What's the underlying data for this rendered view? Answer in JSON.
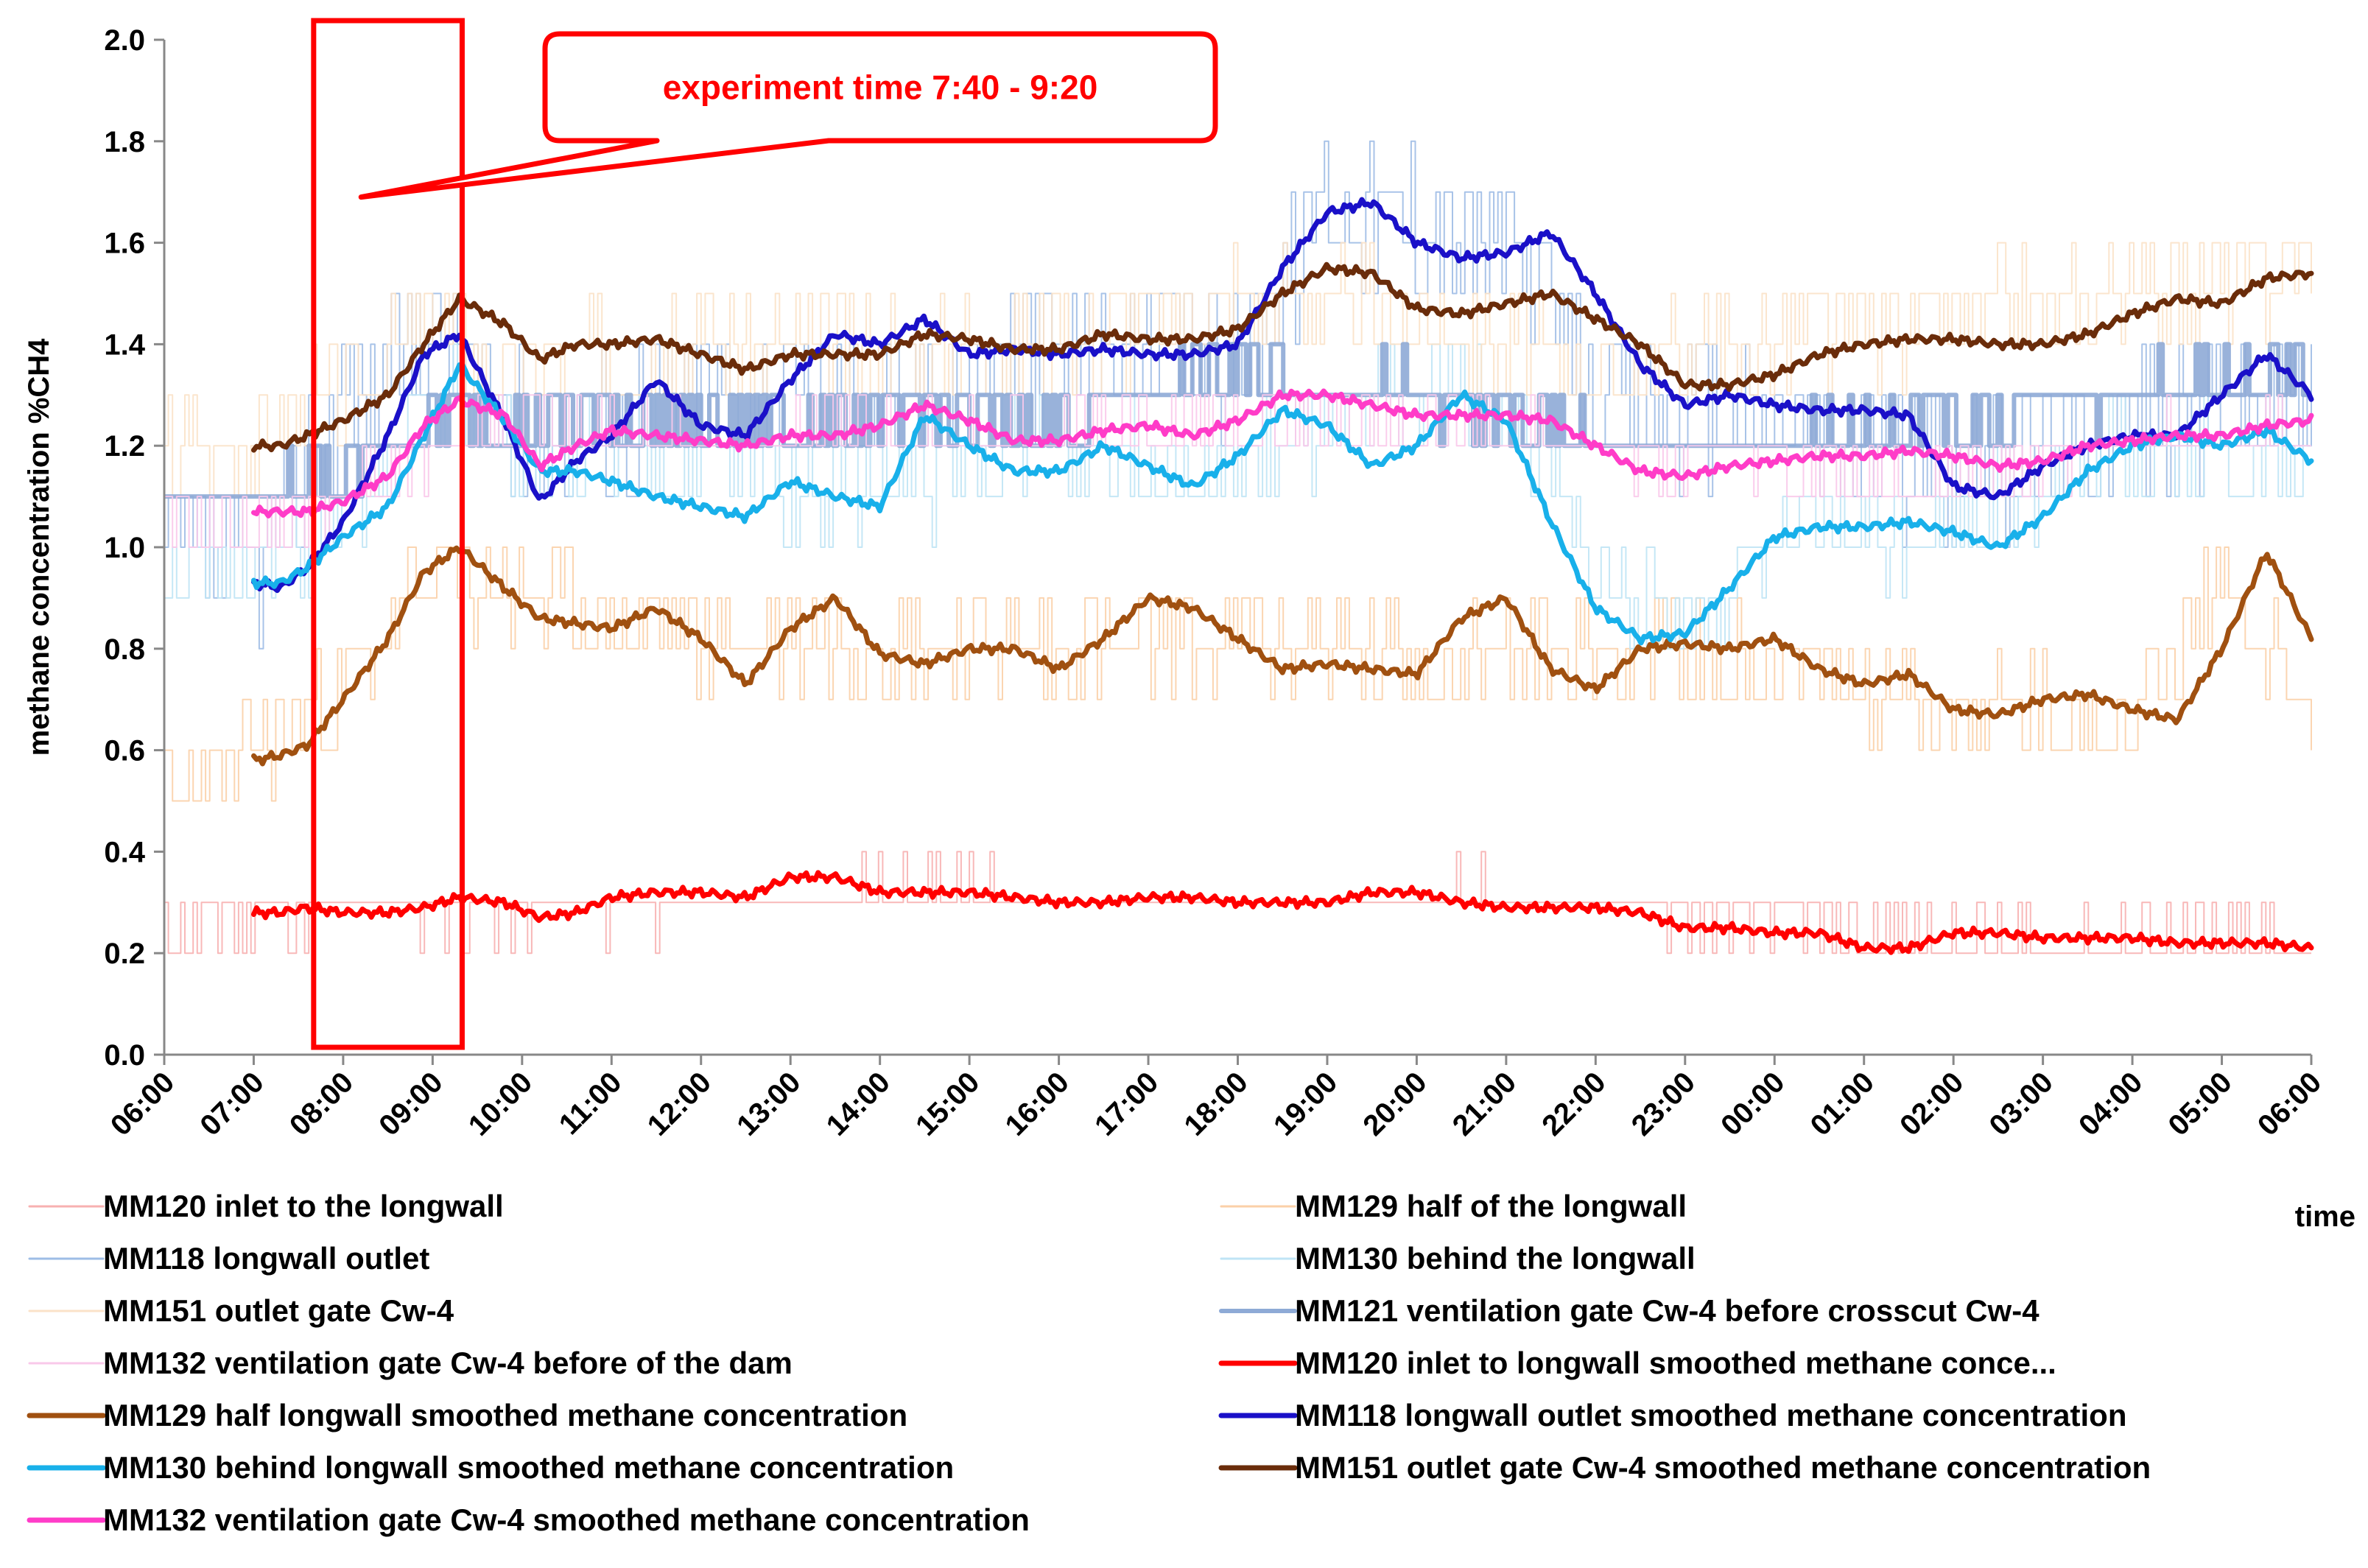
{
  "chart_data": {
    "type": "line",
    "title": "",
    "ylabel": "methane concentration %CH4",
    "xlabel": "time",
    "ylim": [
      0,
      2.0
    ],
    "yticks": [
      "0.0",
      "0.2",
      "0.4",
      "0.6",
      "0.8",
      "1.0",
      "1.2",
      "1.4",
      "1.6",
      "1.8",
      "2.0"
    ],
    "xlim": [
      0,
      24
    ],
    "xticks": [
      "06:00",
      "07:00",
      "08:00",
      "09:00",
      "10:00",
      "11:00",
      "12:00",
      "13:00",
      "14:00",
      "15:00",
      "16:00",
      "17:00",
      "18:00",
      "19:00",
      "20:00",
      "21:00",
      "22:00",
      "23:00",
      "00:00",
      "01:00",
      "02:00",
      "03:00",
      "04:00",
      "05:00",
      "06:00"
    ],
    "annotation": {
      "text": "experiment time  7:40 - 9:20",
      "start_hours": 1.67,
      "end_hours": 3.33,
      "pointer_hours": 2.2,
      "pointer_value": 1.69
    },
    "series": [
      {
        "name": "MM120 inlet to the longwall",
        "color": "#f7b0b0",
        "width": 2,
        "raw": true,
        "base": 0.26,
        "amp": 0.05,
        "step": 0.1,
        "seed": 11,
        "x": [
          0,
          1,
          2,
          4,
          6,
          8,
          10,
          12,
          14,
          16,
          18,
          20,
          22,
          24
        ],
        "values": [
          0.25,
          0.28,
          0.28,
          0.29,
          0.3,
          0.32,
          0.3,
          0.3,
          0.31,
          0.3,
          0.26,
          0.22,
          0.23,
          0.22
        ]
      },
      {
        "name": "MM129 half of the longwall",
        "color": "#fbd0a8",
        "width": 2,
        "raw": true,
        "base": 0.8,
        "amp": 0.1,
        "step": 0.1,
        "seed": 23,
        "x": [
          0,
          1,
          2,
          3,
          4,
          6,
          8,
          10,
          12,
          14,
          16,
          18,
          20,
          22,
          23,
          24
        ],
        "values": [
          0.5,
          0.6,
          0.72,
          0.95,
          0.9,
          0.82,
          0.82,
          0.8,
          0.82,
          0.78,
          0.8,
          0.76,
          0.7,
          0.65,
          0.95,
          0.7
        ]
      },
      {
        "name": "MM118 longwall outlet",
        "color": "#9ebde6",
        "width": 2,
        "raw": true,
        "base": 1.3,
        "amp": 0.15,
        "step": 0.1,
        "seed": 37,
        "x": [
          0,
          1,
          2,
          3,
          4,
          6,
          8,
          10,
          12,
          13,
          14,
          15,
          16,
          18,
          20,
          22,
          24
        ],
        "values": [
          1.0,
          0.95,
          1.3,
          1.45,
          1.2,
          1.3,
          1.3,
          1.4,
          1.38,
          1.7,
          1.65,
          1.6,
          1.3,
          1.25,
          1.15,
          1.25,
          1.3
        ]
      },
      {
        "name": "MM130 behind the longwall",
        "color": "#bfe4f5",
        "width": 2,
        "raw": true,
        "base": 1.1,
        "amp": 0.1,
        "step": 0.1,
        "seed": 51,
        "x": [
          0,
          1,
          2,
          3,
          4,
          6,
          8,
          10,
          12,
          14,
          15,
          16,
          17,
          18,
          20,
          22,
          24
        ],
        "values": [
          0.95,
          0.95,
          1.05,
          1.3,
          1.2,
          1.15,
          1.12,
          1.2,
          1.15,
          1.3,
          1.28,
          0.95,
          0.85,
          1.0,
          1.05,
          1.2,
          1.15
        ]
      },
      {
        "name": "MM151 outlet gate Cw-4",
        "color": "#fbe2c8",
        "width": 2,
        "raw": true,
        "base": 1.35,
        "amp": 0.1,
        "step": 0.1,
        "seed": 67,
        "x": [
          0,
          1,
          2,
          3,
          4,
          6,
          8,
          10,
          12,
          14,
          16,
          18,
          20,
          22,
          24
        ],
        "values": [
          1.2,
          1.2,
          1.3,
          1.45,
          1.35,
          1.4,
          1.4,
          1.4,
          1.5,
          1.45,
          1.35,
          1.4,
          1.45,
          1.5,
          1.55
        ]
      },
      {
        "name": "MM121 ventilation gate  Cw-4 before crosscut Cw-4",
        "color": "#8eaad6",
        "width": 6,
        "raw": true,
        "base": 1.25,
        "amp": 0.05,
        "step": 0.1,
        "seed": 79,
        "x": [
          0,
          1,
          2,
          3,
          4,
          6,
          8,
          10,
          12,
          14,
          16,
          18,
          20,
          22,
          24
        ],
        "values": [
          1.1,
          1.1,
          1.15,
          1.25,
          1.25,
          1.25,
          1.25,
          1.25,
          1.35,
          1.3,
          1.2,
          1.2,
          1.25,
          1.3,
          1.35
        ]
      },
      {
        "name": "MM132 ventilation gate Cw-4 before of the dam",
        "color": "#f9c8ea",
        "width": 2,
        "raw": true,
        "base": 1.2,
        "amp": 0.05,
        "step": 0.1,
        "seed": 91,
        "x": [
          0,
          1,
          2,
          4,
          6,
          8,
          10,
          12,
          14,
          16,
          18,
          20,
          22,
          24
        ],
        "values": [
          1.05,
          1.05,
          1.1,
          1.25,
          1.2,
          1.22,
          1.22,
          1.25,
          1.25,
          1.2,
          1.15,
          1.15,
          1.2,
          1.22
        ]
      },
      {
        "name": "MM120 inlet to longwall smoothed methane conce...",
        "color": "#ff0000",
        "width": 7,
        "raw": false,
        "x": [
          1.0,
          1.3,
          1.6,
          2.0,
          2.5,
          2.9,
          3.3,
          3.8,
          4.2,
          4.6,
          5.0,
          5.5,
          6.0,
          6.5,
          7.0,
          7.5,
          8.0,
          8.5,
          9.0,
          9.5,
          10.0,
          10.5,
          11.0,
          11.5,
          12.0,
          12.5,
          13.0,
          13.5,
          14.0,
          14.5,
          15.0,
          15.5,
          16.0,
          16.5,
          17.0,
          17.5,
          18.0,
          18.5,
          19.0,
          19.5,
          20.0,
          20.5,
          21.0,
          21.5,
          22.0,
          22.5,
          23.0,
          23.5,
          24.0
        ],
        "values": [
          0.28,
          0.28,
          0.29,
          0.28,
          0.28,
          0.29,
          0.31,
          0.3,
          0.27,
          0.28,
          0.31,
          0.32,
          0.32,
          0.31,
          0.35,
          0.35,
          0.32,
          0.32,
          0.32,
          0.31,
          0.3,
          0.3,
          0.31,
          0.31,
          0.3,
          0.3,
          0.3,
          0.32,
          0.32,
          0.3,
          0.29,
          0.29,
          0.29,
          0.28,
          0.25,
          0.25,
          0.24,
          0.24,
          0.21,
          0.21,
          0.24,
          0.24,
          0.23,
          0.23,
          0.23,
          0.22,
          0.22,
          0.22,
          0.21
        ]
      },
      {
        "name": "MM129 half longwall smoothed methane concentration",
        "color": "#a05010",
        "width": 7,
        "raw": false,
        "x": [
          1.0,
          1.3,
          1.6,
          2.0,
          2.5,
          2.9,
          3.3,
          3.8,
          4.2,
          4.6,
          5.0,
          5.5,
          6.0,
          6.5,
          7.0,
          7.5,
          8.0,
          8.5,
          9.0,
          9.5,
          10.0,
          10.5,
          11.0,
          11.5,
          12.0,
          12.5,
          13.0,
          13.5,
          14.0,
          14.5,
          15.0,
          15.5,
          16.0,
          16.5,
          17.0,
          17.5,
          18.0,
          18.5,
          19.0,
          19.5,
          20.0,
          20.5,
          21.0,
          21.5,
          22.0,
          22.5,
          23.0,
          23.5,
          24.0
        ],
        "values": [
          0.58,
          0.59,
          0.61,
          0.7,
          0.82,
          0.95,
          1.0,
          0.92,
          0.86,
          0.85,
          0.84,
          0.88,
          0.82,
          0.73,
          0.84,
          0.9,
          0.79,
          0.77,
          0.8,
          0.8,
          0.76,
          0.82,
          0.9,
          0.88,
          0.82,
          0.76,
          0.77,
          0.76,
          0.75,
          0.86,
          0.9,
          0.76,
          0.72,
          0.8,
          0.81,
          0.8,
          0.82,
          0.76,
          0.73,
          0.75,
          0.68,
          0.67,
          0.7,
          0.71,
          0.68,
          0.66,
          0.8,
          0.99,
          0.82
        ]
      },
      {
        "name": "MM118 longwall outlet smoothed methane concentration",
        "color": "#1a10c8",
        "width": 7,
        "raw": false,
        "x": [
          1.0,
          1.3,
          1.6,
          2.0,
          2.5,
          2.9,
          3.3,
          3.8,
          4.2,
          4.6,
          5.0,
          5.5,
          6.0,
          6.5,
          7.0,
          7.5,
          8.0,
          8.5,
          9.0,
          9.5,
          10.0,
          10.5,
          11.0,
          11.5,
          12.0,
          12.5,
          13.0,
          13.5,
          14.0,
          14.5,
          15.0,
          15.5,
          16.0,
          16.5,
          17.0,
          17.5,
          18.0,
          18.5,
          19.0,
          19.5,
          20.0,
          20.5,
          21.0,
          21.5,
          22.0,
          22.5,
          23.0,
          23.5,
          24.0
        ],
        "values": [
          0.93,
          0.92,
          0.96,
          1.05,
          1.22,
          1.38,
          1.42,
          1.25,
          1.09,
          1.17,
          1.22,
          1.33,
          1.24,
          1.22,
          1.33,
          1.42,
          1.4,
          1.45,
          1.38,
          1.39,
          1.38,
          1.39,
          1.38,
          1.38,
          1.4,
          1.55,
          1.66,
          1.68,
          1.6,
          1.57,
          1.58,
          1.62,
          1.5,
          1.36,
          1.28,
          1.3,
          1.28,
          1.27,
          1.27,
          1.26,
          1.12,
          1.1,
          1.16,
          1.2,
          1.22,
          1.22,
          1.3,
          1.38,
          1.3
        ]
      },
      {
        "name": "MM130 behind longwall smoothed methane concentration",
        "color": "#18b0ea",
        "width": 7,
        "raw": false,
        "x": [
          1.0,
          1.3,
          1.6,
          2.0,
          2.5,
          2.9,
          3.3,
          3.8,
          4.2,
          4.6,
          5.0,
          5.5,
          6.0,
          6.5,
          7.0,
          7.5,
          8.0,
          8.5,
          9.0,
          9.5,
          10.0,
          10.5,
          11.0,
          11.5,
          12.0,
          12.5,
          13.0,
          13.5,
          14.0,
          14.5,
          15.0,
          15.5,
          16.0,
          16.5,
          17.0,
          17.5,
          18.0,
          18.5,
          19.0,
          19.5,
          20.0,
          20.5,
          21.0,
          21.5,
          22.0,
          22.5,
          23.0,
          23.5,
          24.0
        ],
        "values": [
          0.93,
          0.93,
          0.96,
          1.02,
          1.08,
          1.22,
          1.36,
          1.25,
          1.15,
          1.15,
          1.13,
          1.1,
          1.08,
          1.06,
          1.13,
          1.1,
          1.08,
          1.26,
          1.2,
          1.15,
          1.15,
          1.2,
          1.16,
          1.12,
          1.18,
          1.27,
          1.24,
          1.16,
          1.2,
          1.3,
          1.25,
          1.05,
          0.88,
          0.82,
          0.83,
          0.92,
          1.02,
          1.04,
          1.04,
          1.05,
          1.03,
          1.0,
          1.06,
          1.15,
          1.2,
          1.22,
          1.2,
          1.23,
          1.17
        ]
      },
      {
        "name": "MM151 outlet gate Cw-4 smoothed methane concentration",
        "color": "#6a2c0a",
        "width": 7,
        "raw": false,
        "x": [
          1.0,
          1.3,
          1.6,
          2.0,
          2.5,
          2.9,
          3.3,
          3.8,
          4.2,
          4.6,
          5.0,
          5.5,
          6.0,
          6.5,
          7.0,
          7.5,
          8.0,
          8.5,
          9.0,
          9.5,
          10.0,
          10.5,
          11.0,
          11.5,
          12.0,
          12.5,
          13.0,
          13.5,
          14.0,
          14.5,
          15.0,
          15.5,
          16.0,
          16.5,
          17.0,
          17.5,
          18.0,
          18.5,
          19.0,
          19.5,
          20.0,
          20.5,
          21.0,
          21.5,
          22.0,
          22.5,
          23.0,
          23.5,
          24.0
        ],
        "values": [
          1.2,
          1.2,
          1.22,
          1.25,
          1.3,
          1.4,
          1.49,
          1.44,
          1.37,
          1.4,
          1.4,
          1.41,
          1.38,
          1.35,
          1.38,
          1.38,
          1.38,
          1.42,
          1.41,
          1.39,
          1.39,
          1.42,
          1.41,
          1.41,
          1.43,
          1.5,
          1.55,
          1.54,
          1.47,
          1.46,
          1.48,
          1.5,
          1.45,
          1.4,
          1.32,
          1.32,
          1.34,
          1.38,
          1.4,
          1.41,
          1.41,
          1.4,
          1.4,
          1.42,
          1.46,
          1.49,
          1.48,
          1.53,
          1.54
        ]
      },
      {
        "name": "MM132 ventilation gate Cw-4 smoothed methane concentration",
        "color": "#ff3cc8",
        "width": 7,
        "raw": false,
        "x": [
          1.0,
          1.3,
          1.6,
          2.0,
          2.5,
          2.9,
          3.3,
          3.8,
          4.2,
          4.6,
          5.0,
          5.5,
          6.0,
          6.5,
          7.0,
          7.5,
          8.0,
          8.5,
          9.0,
          9.5,
          10.0,
          10.5,
          11.0,
          11.5,
          12.0,
          12.5,
          13.0,
          13.5,
          14.0,
          14.5,
          15.0,
          15.5,
          16.0,
          16.5,
          17.0,
          17.5,
          18.0,
          18.5,
          19.0,
          19.5,
          20.0,
          20.5,
          21.0,
          21.5,
          22.0,
          22.5,
          23.0,
          23.5,
          24.0
        ],
        "values": [
          1.07,
          1.07,
          1.07,
          1.09,
          1.14,
          1.24,
          1.29,
          1.26,
          1.16,
          1.2,
          1.23,
          1.22,
          1.21,
          1.2,
          1.22,
          1.22,
          1.24,
          1.28,
          1.25,
          1.21,
          1.21,
          1.23,
          1.24,
          1.22,
          1.25,
          1.3,
          1.3,
          1.28,
          1.26,
          1.26,
          1.26,
          1.25,
          1.2,
          1.15,
          1.14,
          1.16,
          1.17,
          1.18,
          1.18,
          1.19,
          1.18,
          1.16,
          1.17,
          1.2,
          1.21,
          1.22,
          1.22,
          1.24,
          1.25
        ]
      }
    ],
    "legend": {
      "placement": "bottom",
      "items": [
        {
          "label": "MM120 inlet to the longwall",
          "series": 0
        },
        {
          "label": "MM129 half of the longwall",
          "series": 1
        },
        {
          "label": "MM118 longwall outlet",
          "series": 2
        },
        {
          "label": "MM130 behind the longwall",
          "series": 3
        },
        {
          "label": "MM151 outlet gate Cw-4",
          "series": 4
        },
        {
          "label": "MM121 ventilation gate  Cw-4 before crosscut Cw-4",
          "series": 5
        },
        {
          "label": "MM132 ventilation gate Cw-4 before of the dam",
          "series": 6
        },
        {
          "label": "MM120 inlet to longwall smoothed methane conce...",
          "series": 7
        },
        {
          "label": "MM129 half longwall smoothed methane concentration",
          "series": 8
        },
        {
          "label": "MM118 longwall outlet smoothed methane concentration",
          "series": 9
        },
        {
          "label": "MM130 behind longwall smoothed methane concentration",
          "series": 10
        },
        {
          "label": "MM151 outlet gate Cw-4 smoothed methane concentration",
          "series": 11
        },
        {
          "label": "MM132 ventilation gate Cw-4 smoothed methane concentration",
          "series": 12
        }
      ]
    }
  }
}
